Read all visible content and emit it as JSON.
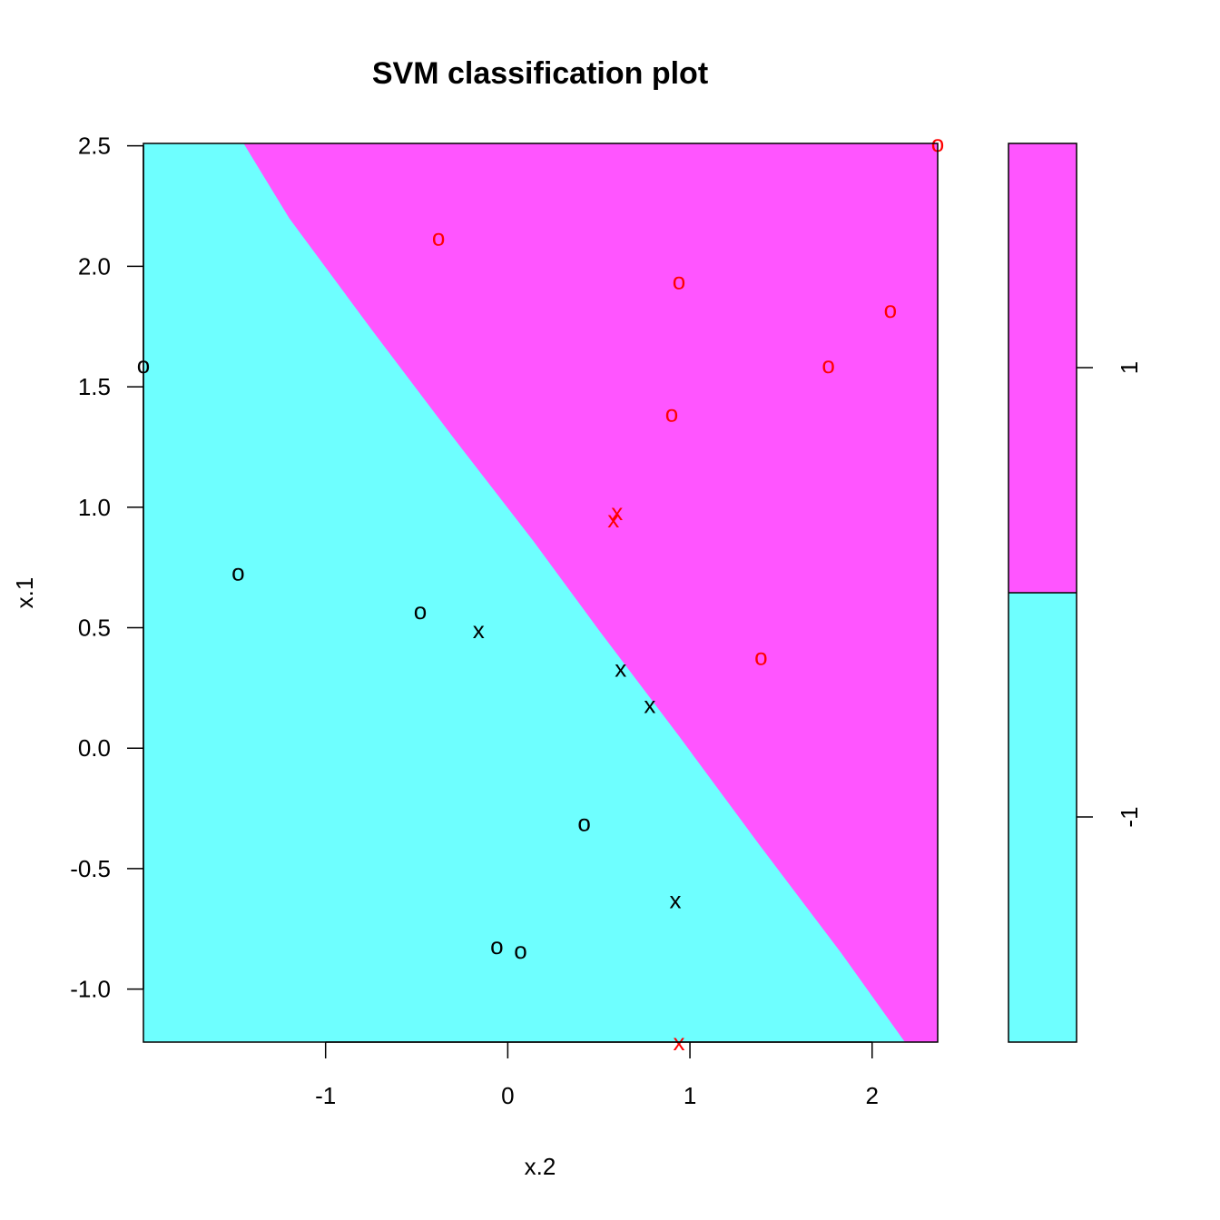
{
  "chart_data": {
    "type": "scatter",
    "title": "SVM classification plot",
    "xlabel": "x.2",
    "ylabel": "x.1",
    "xlim": [
      -2.0,
      2.36
    ],
    "ylim": [
      -1.22,
      2.51
    ],
    "x_ticks": [
      -1,
      0,
      1,
      2
    ],
    "x_tick_labels": [
      "-1",
      "0",
      "1",
      "2"
    ],
    "y_ticks": [
      -1.0,
      -0.5,
      0.0,
      0.5,
      1.0,
      1.5,
      2.0,
      2.5
    ],
    "y_tick_labels": [
      "-1.0",
      "-0.5",
      "0.0",
      "0.5",
      "1.0",
      "1.5",
      "2.0",
      "2.5"
    ],
    "class_colors": {
      "1": "#ff55ff",
      "-1": "#6effff"
    },
    "legend": {
      "placement": "right",
      "levels": [
        {
          "label": "1",
          "color": "#ff55ff"
        },
        {
          "label": "-1",
          "color": "#6effff"
        }
      ]
    },
    "boundary": [
      {
        "x": -1.45,
        "y": 2.51
      },
      {
        "x": -1.2,
        "y": 2.2
      },
      {
        "x": -0.75,
        "y": 1.74
      },
      {
        "x": -0.3,
        "y": 1.29
      },
      {
        "x": 0.14,
        "y": 0.86
      },
      {
        "x": 0.5,
        "y": 0.49
      },
      {
        "x": 0.94,
        "y": 0.05
      },
      {
        "x": 1.38,
        "y": -0.4
      },
      {
        "x": 1.83,
        "y": -0.85
      },
      {
        "x": 2.18,
        "y": -1.22
      }
    ],
    "points": [
      {
        "x": 2.36,
        "y": 2.51,
        "marker": "o",
        "color": "#ff0000",
        "name": "point-red-o"
      },
      {
        "x": -0.38,
        "y": 2.12,
        "marker": "o",
        "color": "#ff0000",
        "name": "point-red-o"
      },
      {
        "x": 0.94,
        "y": 1.94,
        "marker": "o",
        "color": "#ff0000",
        "name": "point-red-o"
      },
      {
        "x": 2.1,
        "y": 1.82,
        "marker": "o",
        "color": "#ff0000",
        "name": "point-red-o"
      },
      {
        "x": 1.76,
        "y": 1.59,
        "marker": "o",
        "color": "#ff0000",
        "name": "point-red-o"
      },
      {
        "x": 0.9,
        "y": 1.39,
        "marker": "o",
        "color": "#ff0000",
        "name": "point-red-o"
      },
      {
        "x": 0.6,
        "y": 0.98,
        "marker": "x",
        "color": "#ff0000",
        "name": "point-red-x"
      },
      {
        "x": 0.58,
        "y": 0.95,
        "marker": "x",
        "color": "#ff0000",
        "name": "point-red-x"
      },
      {
        "x": 1.39,
        "y": 0.38,
        "marker": "o",
        "color": "#ff0000",
        "name": "point-red-o"
      },
      {
        "x": 0.94,
        "y": -1.22,
        "marker": "x",
        "color": "#ff0000",
        "name": "point-red-x"
      },
      {
        "x": -2.0,
        "y": 1.59,
        "marker": "o",
        "color": "#000000",
        "name": "point-black-o"
      },
      {
        "x": -1.48,
        "y": 0.73,
        "marker": "o",
        "color": "#000000",
        "name": "point-black-o"
      },
      {
        "x": -0.48,
        "y": 0.57,
        "marker": "o",
        "color": "#000000",
        "name": "point-black-o"
      },
      {
        "x": -0.16,
        "y": 0.49,
        "marker": "x",
        "color": "#000000",
        "name": "point-black-x"
      },
      {
        "x": 0.62,
        "y": 0.33,
        "marker": "x",
        "color": "#000000",
        "name": "point-black-x"
      },
      {
        "x": 0.78,
        "y": 0.18,
        "marker": "x",
        "color": "#000000",
        "name": "point-black-x"
      },
      {
        "x": 0.42,
        "y": -0.31,
        "marker": "o",
        "color": "#000000",
        "name": "point-black-o"
      },
      {
        "x": 0.92,
        "y": -0.63,
        "marker": "x",
        "color": "#000000",
        "name": "point-black-x"
      },
      {
        "x": -0.06,
        "y": -0.82,
        "marker": "o",
        "color": "#000000",
        "name": "point-black-o"
      },
      {
        "x": 0.07,
        "y": -0.84,
        "marker": "o",
        "color": "#000000",
        "name": "point-black-o"
      }
    ]
  }
}
